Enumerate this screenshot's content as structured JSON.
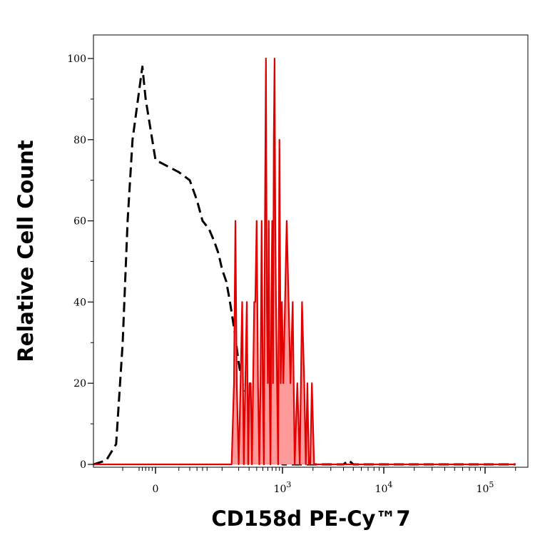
{
  "chart_data": {
    "type": "area",
    "title": "",
    "xlabel": "CD158d PE-Cy™7",
    "ylabel": "Relative Cell Count",
    "x_scale": "biexponential",
    "xlim": [
      -200,
      200000
    ],
    "ylim": [
      0,
      100
    ],
    "grid": false,
    "y_ticks": [
      0,
      20,
      40,
      60,
      80,
      100
    ],
    "y_tick_labels": [
      "0",
      "20",
      "40",
      "60",
      "80",
      "100"
    ],
    "x_tick_labels": [
      {
        "value": 0,
        "base": "0",
        "exp": ""
      },
      {
        "value": 1000,
        "base": "10",
        "exp": "3"
      },
      {
        "value": 10000,
        "base": "10",
        "exp": "4"
      },
      {
        "value": 100000,
        "base": "10",
        "exp": "5"
      }
    ],
    "colors": {
      "stained": "#e00000",
      "stained_fill": "#ff9a9a",
      "control": "#000000"
    },
    "series": [
      {
        "style": "dashed-outline",
        "color": "#000000",
        "x": [
          -200,
          -150,
          -120,
          -100,
          -85,
          -70,
          -60,
          -50,
          -40,
          -30,
          -20,
          -10,
          0,
          10,
          20,
          30,
          40,
          55,
          70,
          85,
          100,
          120,
          140,
          160,
          180,
          200,
          230,
          260,
          300,
          350,
          400,
          450,
          500,
          550,
          600,
          650,
          700,
          800,
          900,
          1000,
          1200,
          1500,
          2000,
          3000,
          4000,
          4500,
          5000,
          10000,
          100000,
          200000
        ],
        "values": [
          0,
          1,
          5,
          30,
          60,
          80,
          86,
          92,
          98,
          90,
          85,
          80,
          75,
          72,
          70,
          65,
          60,
          58,
          55,
          52,
          48,
          45,
          40,
          35,
          30,
          25,
          20,
          18,
          15,
          10,
          7,
          4,
          3,
          2,
          1,
          1,
          2,
          1,
          1,
          0,
          0,
          0,
          0,
          0,
          0,
          1,
          0,
          0,
          0,
          0
        ]
      },
      {
        "style": "filled",
        "color": "#e00000",
        "x": [
          -200,
          150,
          165,
          175,
          185,
          200,
          215,
          230,
          245,
          260,
          275,
          290,
          305,
          320,
          335,
          350,
          365,
          380,
          400,
          420,
          440,
          460,
          480,
          500,
          520,
          540,
          560,
          580,
          600,
          620,
          640,
          660,
          680,
          700,
          720,
          740,
          760,
          780,
          800,
          830,
          860,
          900,
          940,
          980,
          1020,
          1060,
          1100,
          1150,
          1200,
          1260,
          1320,
          1400,
          1480,
          1560,
          1640,
          1700,
          1760,
          1820,
          1880,
          1950,
          2050,
          2150,
          3000,
          10000,
          200000
        ],
        "values": [
          0,
          0,
          20,
          60,
          20,
          0,
          20,
          40,
          0,
          20,
          40,
          0,
          20,
          20,
          0,
          20,
          40,
          40,
          60,
          20,
          0,
          20,
          60,
          20,
          0,
          60,
          100,
          40,
          20,
          60,
          20,
          0,
          40,
          60,
          20,
          80,
          100,
          60,
          40,
          20,
          0,
          80,
          20,
          40,
          20,
          40,
          60,
          40,
          20,
          40,
          0,
          20,
          0,
          40,
          20,
          0,
          20,
          0,
          0,
          20,
          0,
          0,
          0,
          0,
          0
        ]
      }
    ]
  }
}
